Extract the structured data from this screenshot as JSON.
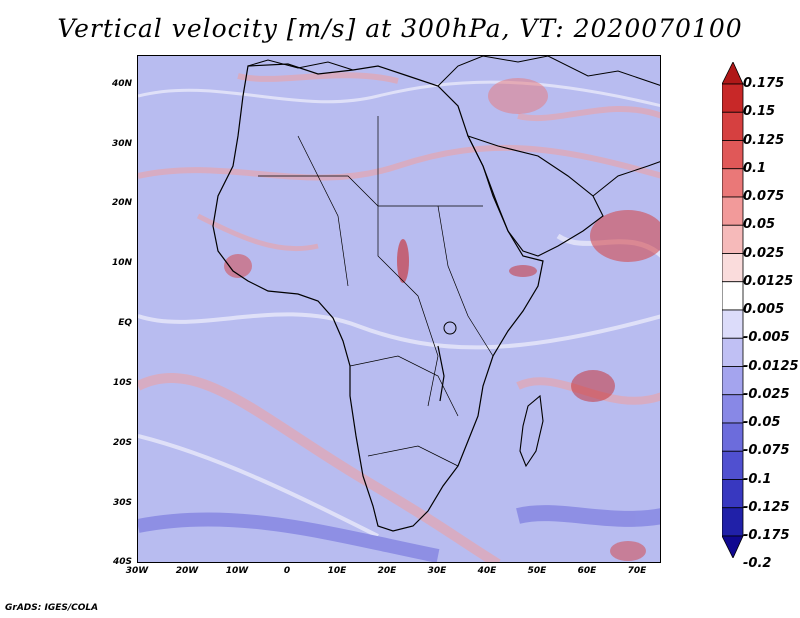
{
  "title": "Vertical velocity [m/s] at 300hPa, VT: 2020070100",
  "footer": "GrADS: IGES/COLA",
  "y_ticks": [
    "40N",
    "30N",
    "20N",
    "10N",
    "EQ",
    "10S",
    "20S",
    "30S",
    "40S"
  ],
  "x_ticks": [
    "30W",
    "20W",
    "10W",
    "0",
    "10E",
    "20E",
    "30E",
    "40E",
    "50E",
    "60E",
    "70E"
  ],
  "colorbar": {
    "levels": [
      "0.175",
      "0.15",
      "0.125",
      "0.1",
      "0.075",
      "0.05",
      "0.025",
      "0.0125",
      "0.005",
      "-0.005",
      "-0.0125",
      "-0.025",
      "-0.05",
      "-0.075",
      "-0.1",
      "-0.125",
      "-0.175",
      "-0.2"
    ],
    "colors": [
      "#b01818",
      "#c82828",
      "#d64040",
      "#e05858",
      "#ea7878",
      "#f29a9a",
      "#f6baba",
      "#fadcdc",
      "#ffffff",
      "#dcdcfa",
      "#c0c0f4",
      "#a4a4ee",
      "#8888e6",
      "#6c6cdc",
      "#5050d0",
      "#3838c0",
      "#2020a8",
      "#100890"
    ]
  },
  "map": {
    "background_color": "#b8bcf0",
    "lon_range": [
      -30,
      75
    ],
    "lat_range": [
      -40,
      45
    ]
  }
}
